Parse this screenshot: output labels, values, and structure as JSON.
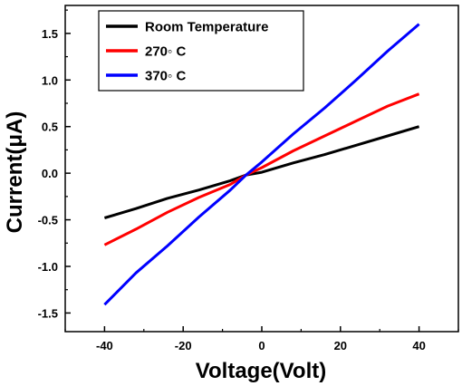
{
  "chart_data": {
    "type": "line",
    "title": "",
    "xlabel": "Voltage(Volt)",
    "ylabel": "Current(μA)",
    "xlim": [
      -50,
      50
    ],
    "ylim": [
      -1.7,
      1.8
    ],
    "x_ticks": [
      -40,
      -20,
      0,
      20,
      40
    ],
    "x_tick_labels": [
      "-40",
      "-20",
      "0",
      "20",
      "40"
    ],
    "y_ticks": [
      -1.5,
      -1.0,
      -0.5,
      0.0,
      0.5,
      1.0,
      1.5
    ],
    "y_tick_labels": [
      "-1.5",
      "-1.0",
      "-0.5",
      "0.0",
      "0.5",
      "1.0",
      "1.5"
    ],
    "grid": false,
    "legend_position": "top-left",
    "series": [
      {
        "name": "Room Temperature",
        "color": "#000000",
        "x": [
          -40,
          -32,
          -24,
          -16,
          -8,
          -4,
          0,
          8,
          16,
          24,
          32,
          40
        ],
        "y": [
          -0.48,
          -0.38,
          -0.27,
          -0.18,
          -0.08,
          -0.02,
          0.01,
          0.11,
          0.2,
          0.3,
          0.4,
          0.5
        ]
      },
      {
        "name": "270◦ C",
        "color": "#ff0000",
        "x": [
          -40,
          -32,
          -24,
          -16,
          -8,
          -4,
          0,
          8,
          16,
          24,
          32,
          40
        ],
        "y": [
          -0.77,
          -0.6,
          -0.42,
          -0.26,
          -0.12,
          -0.02,
          0.06,
          0.24,
          0.4,
          0.56,
          0.72,
          0.85
        ]
      },
      {
        "name": "370◦ C",
        "color": "#0000ff",
        "x": [
          -40,
          -32,
          -24,
          -16,
          -8,
          -4,
          0,
          8,
          16,
          24,
          32,
          40
        ],
        "y": [
          -1.41,
          -1.07,
          -0.78,
          -0.47,
          -0.18,
          -0.02,
          0.12,
          0.42,
          0.7,
          1.0,
          1.31,
          1.6
        ]
      }
    ]
  }
}
